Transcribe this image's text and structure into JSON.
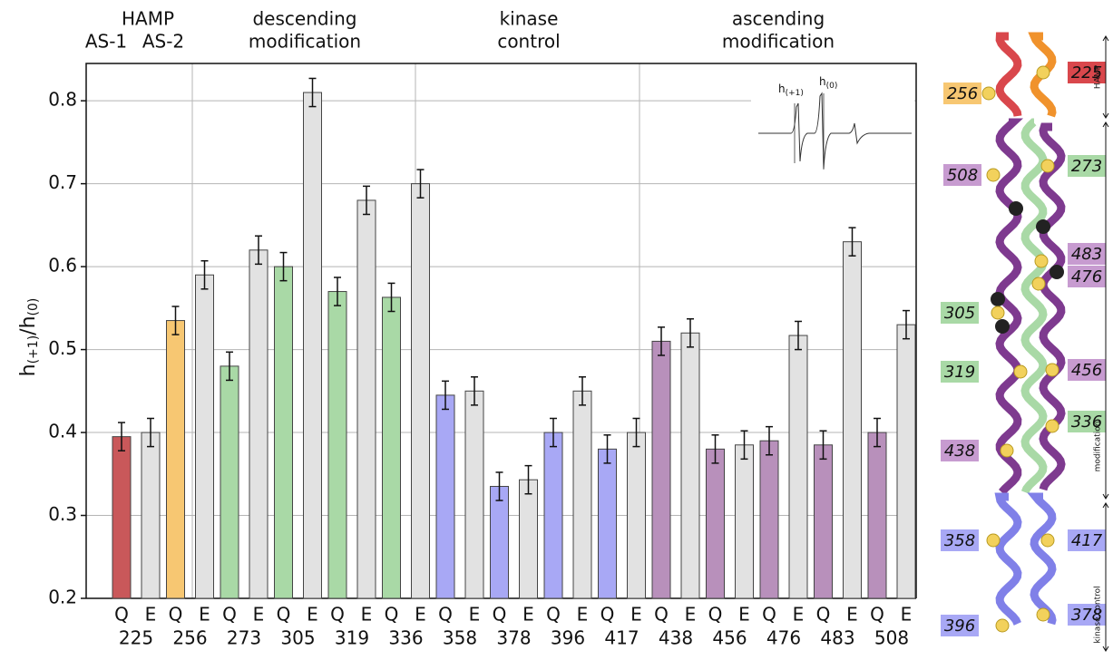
{
  "chart_data": {
    "type": "bar",
    "group_labels": [
      [
        "HAMP"
      ],
      [
        "AS-1"
      ],
      [
        "AS-2"
      ],
      [
        "descending",
        "modification"
      ],
      [
        "kinase",
        "control"
      ],
      [
        "ascending",
        "modification"
      ]
    ],
    "ylabel": [
      "h",
      "(+1)",
      "/h",
      "(0)"
    ],
    "inset_labels": [
      [
        "h",
        "(+1)"
      ],
      [
        "h",
        "(0)"
      ]
    ],
    "categories": [
      "225",
      "256",
      "273",
      "305",
      "319",
      "336",
      "358",
      "378",
      "396",
      "417",
      "438",
      "456",
      "476",
      "483",
      "508"
    ],
    "series": [
      {
        "name": "Q",
        "colors": [
          "#c9585a",
          "#f7c772",
          "#a9d9a6",
          "#a9d9a6",
          "#a9d9a6",
          "#a9d9a6",
          "#a8a8f5",
          "#a8a8f5",
          "#a8a8f5",
          "#a8a8f5",
          "#b890bb",
          "#b890bb",
          "#b890bb",
          "#b890bb",
          "#b890bb"
        ],
        "values": [
          0.395,
          0.535,
          0.48,
          0.6,
          0.57,
          0.563,
          0.445,
          0.335,
          0.4,
          0.38,
          0.51,
          0.38,
          0.39,
          0.385,
          0.4
        ],
        "errors": [
          0.017,
          0.017,
          0.017,
          0.017,
          0.017,
          0.017,
          0.017,
          0.017,
          0.017,
          0.017,
          0.017,
          0.017,
          0.017,
          0.017,
          0.017
        ]
      },
      {
        "name": "E",
        "color": "#e2e2e2",
        "values": [
          0.4,
          0.59,
          0.62,
          0.81,
          0.68,
          0.7,
          0.45,
          0.343,
          0.45,
          0.4,
          0.52,
          0.385,
          0.517,
          0.63,
          0.53
        ],
        "errors": [
          0.017,
          0.017,
          0.017,
          0.017,
          0.017,
          0.017,
          0.017,
          0.017,
          0.017,
          0.017,
          0.017,
          0.017,
          0.017,
          0.017,
          0.017
        ]
      }
    ],
    "ylim": [
      0.2,
      0.845
    ],
    "yticks": [
      0.2,
      0.3,
      0.4,
      0.5,
      0.6,
      0.7,
      0.8
    ],
    "grid": true
  },
  "structure": {
    "labels": [
      {
        "text": "225",
        "color": "#d9474c"
      },
      {
        "text": "256",
        "color": "#f7c772"
      },
      {
        "text": "508",
        "color": "#c79bd0"
      },
      {
        "text": "273",
        "color": "#a9d9a6"
      },
      {
        "text": "483",
        "color": "#c79bd0"
      },
      {
        "text": "476",
        "color": "#c79bd0"
      },
      {
        "text": "305",
        "color": "#a9d9a6"
      },
      {
        "text": "319",
        "color": "#a9d9a6"
      },
      {
        "text": "456",
        "color": "#c79bd0"
      },
      {
        "text": "336",
        "color": "#a9d9a6"
      },
      {
        "text": "438",
        "color": "#c79bd0"
      },
      {
        "text": "358",
        "color": "#a8a8f5"
      },
      {
        "text": "417",
        "color": "#a8a8f5"
      },
      {
        "text": "396",
        "color": "#a8a8f5"
      },
      {
        "text": "378",
        "color": "#a8a8f5"
      }
    ],
    "domains": [
      "HAMP",
      "modification",
      "kinase control"
    ]
  }
}
